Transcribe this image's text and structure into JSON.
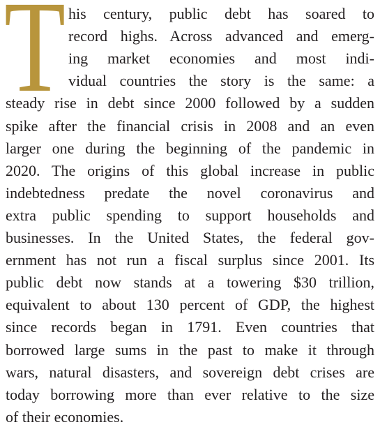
{
  "drop_cap": "T",
  "lines": [
    "his century, public debt has soared to",
    "record highs. Across advanced and emerg-",
    "ing market economies and most indi-",
    "vidual countries the story is the same: a",
    "steady rise in debt since 2000 followed by a sudden",
    "spike after the financial crisis in 2008 and an even",
    "larger one during the beginning of the pandemic in",
    "2020. The origins of this global increase in public",
    "indebtedness predate the novel coronavirus and",
    "extra public spending to support households and",
    "businesses. In the United States, the federal gov-",
    "ernment has not run a fiscal surplus since 2001. Its",
    "public debt now stands at a towering $30 trillion,",
    "equivalent to about 130 percent of GDP, the highest",
    "since records began in 1791. Even countries that",
    "borrowed large sums in the past to make it through",
    "wars, natural disasters, and sovereign debt crises are",
    "today borrowing more than ever relative to the size",
    "of their economies."
  ]
}
